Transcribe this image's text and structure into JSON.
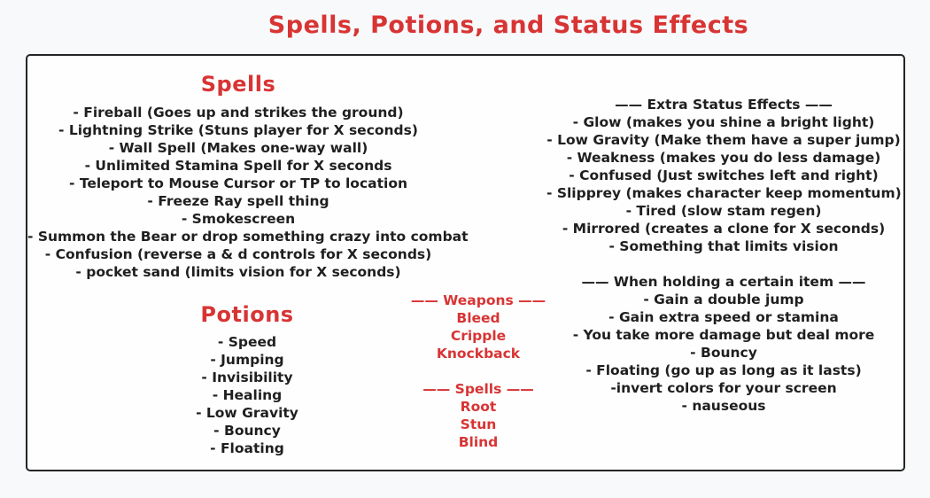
{
  "page": {
    "title": "Spells, Potions, and Status Effects",
    "colors": {
      "accent_red": "#d83434",
      "text_black": "#1f1f1f",
      "page_background": "#f8f9fa",
      "board_background": "#fefefe",
      "board_border": "#242424"
    }
  },
  "spells_section": {
    "heading": "Spells",
    "items": [
      "- Fireball (Goes up and strikes the ground)",
      "- Lightning Strike (Stuns player for X seconds)",
      "- Wall Spell (Makes one-way wall)",
      "- Unlimited Stamina Spell for X seconds",
      "- Teleport to Mouse Cursor or TP to location",
      "- Freeze Ray spell thing",
      "- Smokescreen",
      "- Summon the Bear or drop something crazy into combat",
      "- Confusion (reverse a & d controls for X seconds)",
      "- pocket sand (limits vision for X seconds)"
    ]
  },
  "potions_section": {
    "heading": "Potions",
    "items": [
      "- Speed",
      "- Jumping",
      "- Invisibility",
      "- Healing",
      "- Low Gravity",
      "- Bouncy",
      "- Floating"
    ]
  },
  "weapons_group": {
    "heading": "—— Weapons ——",
    "items": [
      "Bleed",
      "Cripple",
      "Knockback"
    ]
  },
  "spell_effects_group": {
    "heading": "—— Spells ——",
    "items": [
      "Root",
      "Stun",
      "Blind"
    ]
  },
  "extra_status_section": {
    "heading": "—— Extra Status Effects ——",
    "items": [
      "- Glow (makes you shine a bright light)",
      "- Low Gravity (Make them have a super jump)",
      "- Weakness (makes you do less damage)",
      "- Confused (Just switches left and right)",
      "- Slipprey (makes character keep momentum)",
      "- Tired (slow stam regen)",
      "- Mirrored (creates a clone for X seconds)",
      "- Something that limits vision"
    ]
  },
  "holding_item_section": {
    "heading": "—— When holding a certain item ——",
    "items": [
      "- Gain a double jump",
      "- Gain extra speed or stamina",
      "- You take more damage but deal more",
      "- Bouncy",
      "- Floating (go up as long as it lasts)",
      "-invert colors for your screen",
      "- nauseous"
    ]
  }
}
